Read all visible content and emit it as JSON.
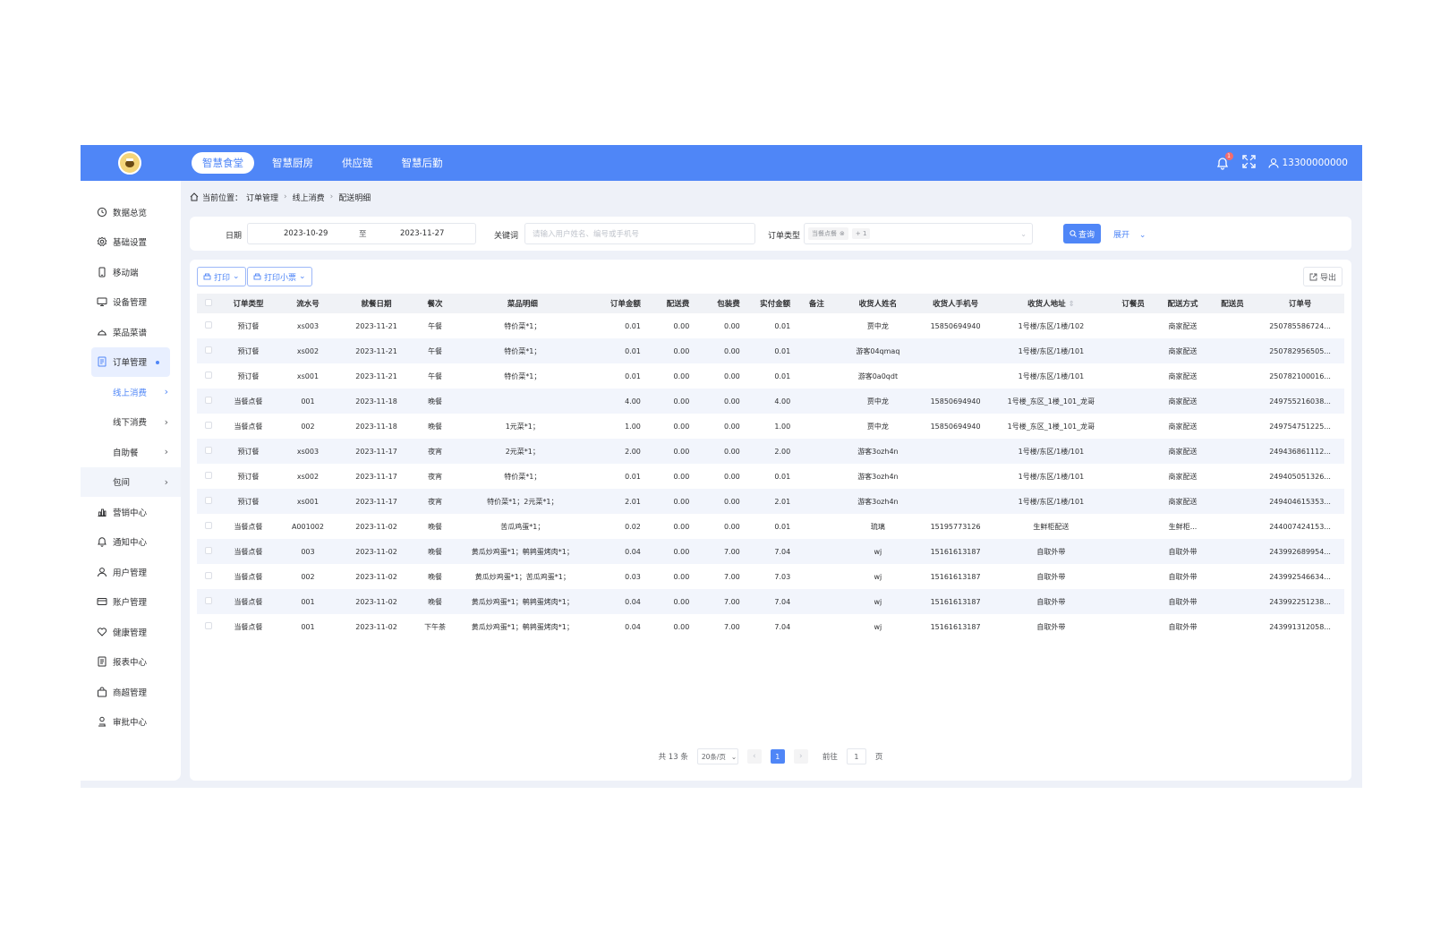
{
  "topbar": {
    "logo_text": "智慧食堂",
    "nav": [
      "智慧食堂",
      "智慧厨房",
      "供应链",
      "智慧后勤"
    ],
    "active_nav": 0,
    "notification_count": "1",
    "user_phone": "13300000000",
    "accent_color": "#4f86f7"
  },
  "sidebar": {
    "items": [
      {
        "label": "数据总览",
        "icon": "clock-icon"
      },
      {
        "label": "基础设置",
        "icon": "gear-icon"
      },
      {
        "label": "移动端",
        "icon": "phone-icon"
      },
      {
        "label": "设备管理",
        "icon": "monitor-icon"
      },
      {
        "label": "菜品菜谱",
        "icon": "dish-icon"
      },
      {
        "label": "订单管理",
        "icon": "document-icon"
      }
    ],
    "sub_items": [
      "线上消费",
      "线下消费",
      "自助餐",
      "包间"
    ],
    "items_after": [
      {
        "label": "营销中心",
        "icon": "chart-icon"
      },
      {
        "label": "通知中心",
        "icon": "bell-icon"
      },
      {
        "label": "用户管理",
        "icon": "user-icon"
      },
      {
        "label": "账户管理",
        "icon": "card-icon"
      },
      {
        "label": "健康管理",
        "icon": "heart-icon"
      },
      {
        "label": "报表中心",
        "icon": "report-icon"
      },
      {
        "label": "商超管理",
        "icon": "bag-icon"
      },
      {
        "label": "审批中心",
        "icon": "approve-icon"
      }
    ]
  },
  "breadcrumb": {
    "prefix": "当前位置：",
    "items": [
      "订单管理",
      "线上消费",
      "配送明细"
    ]
  },
  "filter": {
    "date_label": "日期",
    "date_start": "2023-10-29",
    "date_to": "至",
    "date_end": "2023-11-27",
    "keyword_label": "关键词",
    "keyword_placeholder": "请输入用户姓名、编号或手机号",
    "order_type_label": "订单类型",
    "order_type_tag": "当餐点餐",
    "order_type_more": "+ 1",
    "query_label": "查询",
    "expand_label": "展开"
  },
  "toolbar": {
    "print_label": "打印",
    "print_ticket_label": "打印小票",
    "export_label": "导出"
  },
  "table": {
    "columns": [
      "订单类型",
      "流水号",
      "就餐日期",
      "餐次",
      "菜品明细",
      "订单金额",
      "配送费",
      "包装费",
      "实付金额",
      "备注",
      "收货人姓名",
      "收货人手机号",
      "收货人地址",
      "订餐员",
      "配送方式",
      "配送员",
      "订单号"
    ],
    "rows": [
      [
        "预订餐",
        "xs003",
        "2023-11-21",
        "午餐",
        "特价菜*1；",
        "0.01",
        "0.00",
        "0.00",
        "0.01",
        "",
        "贾中龙",
        "15850694940",
        "1号楼/东区/1楼/102",
        "",
        "商家配送",
        "",
        "250785586724..."
      ],
      [
        "预订餐",
        "xs002",
        "2023-11-21",
        "午餐",
        "特价菜*1；",
        "0.01",
        "0.00",
        "0.00",
        "0.01",
        "",
        "游客04qmaq",
        "",
        "1号楼/东区/1楼/101",
        "",
        "商家配送",
        "",
        "250782956505..."
      ],
      [
        "预订餐",
        "xs001",
        "2023-11-21",
        "午餐",
        "特价菜*1；",
        "0.01",
        "0.00",
        "0.00",
        "0.01",
        "",
        "游客0a0qdt",
        "",
        "1号楼/东区/1楼/101",
        "",
        "商家配送",
        "",
        "250782100016..."
      ],
      [
        "当餐点餐",
        "001",
        "2023-11-18",
        "晚餐",
        "",
        "4.00",
        "0.00",
        "0.00",
        "4.00",
        "",
        "贾中龙",
        "15850694940",
        "1号楼_东区_1楼_101_龙哥",
        "",
        "商家配送",
        "",
        "249755216038..."
      ],
      [
        "当餐点餐",
        "002",
        "2023-11-18",
        "晚餐",
        "1元菜*1；",
        "1.00",
        "0.00",
        "0.00",
        "1.00",
        "",
        "贾中龙",
        "15850694940",
        "1号楼_东区_1楼_101_龙哥",
        "",
        "商家配送",
        "",
        "249754751225..."
      ],
      [
        "预订餐",
        "xs003",
        "2023-11-17",
        "夜宵",
        "2元菜*1；",
        "2.00",
        "0.00",
        "0.00",
        "2.00",
        "",
        "游客3ozh4n",
        "",
        "1号楼/东区/1楼/101",
        "",
        "商家配送",
        "",
        "249436861112..."
      ],
      [
        "预订餐",
        "xs002",
        "2023-11-17",
        "夜宵",
        "特价菜*1；",
        "0.01",
        "0.00",
        "0.00",
        "0.01",
        "",
        "游客3ozh4n",
        "",
        "1号楼/东区/1楼/101",
        "",
        "商家配送",
        "",
        "249405051326..."
      ],
      [
        "预订餐",
        "xs001",
        "2023-11-17",
        "夜宵",
        "特价菜*1；2元菜*1；",
        "2.01",
        "0.00",
        "0.00",
        "2.01",
        "",
        "游客3ozh4n",
        "",
        "1号楼/东区/1楼/101",
        "",
        "商家配送",
        "",
        "249404615353..."
      ],
      [
        "当餐点餐",
        "A001002",
        "2023-11-02",
        "晚餐",
        "苦瓜鸡蛋*1；",
        "0.02",
        "0.00",
        "0.00",
        "0.01",
        "",
        "琉璃",
        "15195773126",
        "生鲜柜配送",
        "",
        "生鲜柜...",
        "",
        "244007424153..."
      ],
      [
        "当餐点餐",
        "003",
        "2023-11-02",
        "晚餐",
        "黄瓜炒鸡蛋*1；鹌鹑蛋烤肉*1；",
        "0.04",
        "0.00",
        "7.00",
        "7.04",
        "",
        "wj",
        "15161613187",
        "自取外带",
        "",
        "自取外带",
        "",
        "243992689954..."
      ],
      [
        "当餐点餐",
        "002",
        "2023-11-02",
        "晚餐",
        "黄瓜炒鸡蛋*1；苦瓜鸡蛋*1；",
        "0.03",
        "0.00",
        "7.00",
        "7.03",
        "",
        "wj",
        "15161613187",
        "自取外带",
        "",
        "自取外带",
        "",
        "243992546634..."
      ],
      [
        "当餐点餐",
        "001",
        "2023-11-02",
        "晚餐",
        "黄瓜炒鸡蛋*1；鹌鹑蛋烤肉*1；",
        "0.04",
        "0.00",
        "7.00",
        "7.04",
        "",
        "wj",
        "15161613187",
        "自取外带",
        "",
        "自取外带",
        "",
        "243992251238..."
      ],
      [
        "当餐点餐",
        "001",
        "2023-11-02",
        "下午茶",
        "黄瓜炒鸡蛋*1；鹌鹑蛋烤肉*1；",
        "0.04",
        "0.00",
        "7.00",
        "7.04",
        "",
        "wj",
        "15161613187",
        "自取外带",
        "",
        "自取外带",
        "",
        "243991312058..."
      ]
    ]
  },
  "pagination": {
    "total_text": "共 13 条",
    "page_size": "20条/页",
    "current_page": "1",
    "goto_label": "前往",
    "goto_value": "1",
    "page_suffix": "页"
  }
}
